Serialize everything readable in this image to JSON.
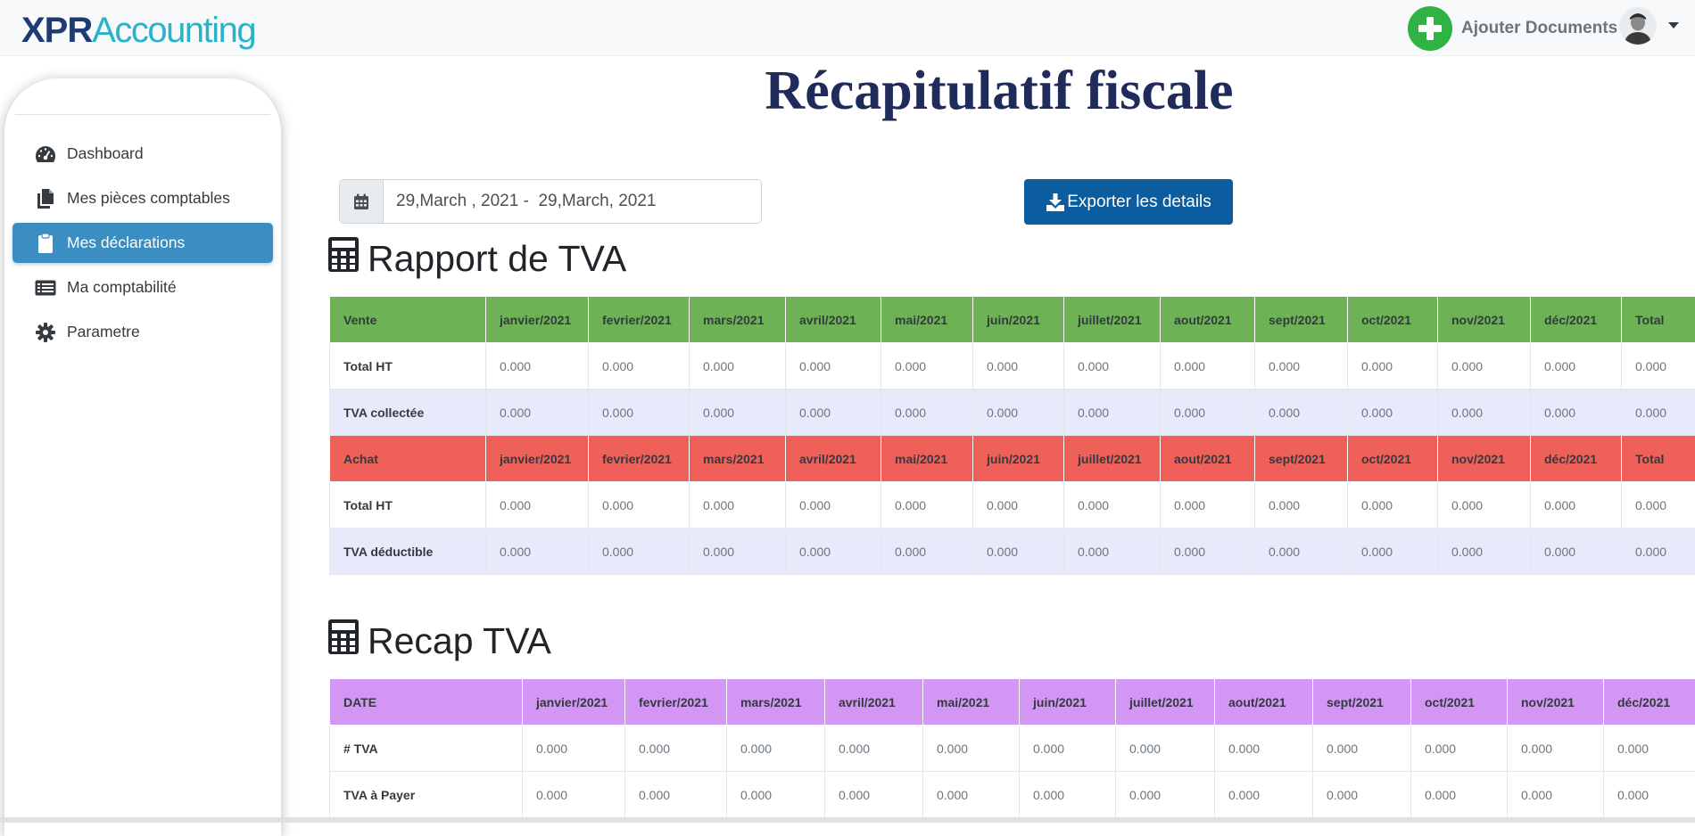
{
  "app": {
    "logo_strong": "XPR",
    "logo_light": "Accounting",
    "add_documents_label": "Ajouter Documents"
  },
  "sidebar": {
    "items": [
      {
        "label": "Dashboard",
        "icon": "tachometer-icon",
        "active": false
      },
      {
        "label": "Mes pièces comptables",
        "icon": "copy-icon",
        "active": false
      },
      {
        "label": "Mes déclarations",
        "icon": "clipboard-icon",
        "active": true
      },
      {
        "label": "Ma comptabilité",
        "icon": "list-icon",
        "active": false
      },
      {
        "label": "Parametre",
        "icon": "gear-icon",
        "active": false
      }
    ]
  },
  "main": {
    "title": "Récapitulatif fiscale",
    "date_range": "29,March , 2021 -  29,March, 2021",
    "export_label": "Exporter les details",
    "section1_title": "Rapport de TVA",
    "section2_title": "Recap TVA"
  },
  "rapport": {
    "vente_header": [
      "Vente",
      "janvier/2021",
      "fevrier/2021",
      "mars/2021",
      "avril/2021",
      "mai/2021",
      "juin/2021",
      "juillet/2021",
      "aout/2021",
      "sept/2021",
      "oct/2021",
      "nov/2021",
      "déc/2021",
      "Total"
    ],
    "vente_rows": [
      [
        "Total HT",
        "0.000",
        "0.000",
        "0.000",
        "0.000",
        "0.000",
        "0.000",
        "0.000",
        "0.000",
        "0.000",
        "0.000",
        "0.000",
        "0.000",
        "0.000"
      ],
      [
        "TVA collectée",
        "0.000",
        "0.000",
        "0.000",
        "0.000",
        "0.000",
        "0.000",
        "0.000",
        "0.000",
        "0.000",
        "0.000",
        "0.000",
        "0.000",
        "0.000"
      ]
    ],
    "achat_header": [
      "Achat",
      "janvier/2021",
      "fevrier/2021",
      "mars/2021",
      "avril/2021",
      "mai/2021",
      "juin/2021",
      "juillet/2021",
      "aout/2021",
      "sept/2021",
      "oct/2021",
      "nov/2021",
      "déc/2021",
      "Total"
    ],
    "achat_rows": [
      [
        "Total HT",
        "0.000",
        "0.000",
        "0.000",
        "0.000",
        "0.000",
        "0.000",
        "0.000",
        "0.000",
        "0.000",
        "0.000",
        "0.000",
        "0.000",
        "0.000"
      ],
      [
        "TVA déductible",
        "0.000",
        "0.000",
        "0.000",
        "0.000",
        "0.000",
        "0.000",
        "0.000",
        "0.000",
        "0.000",
        "0.000",
        "0.000",
        "0.000",
        "0.000"
      ]
    ]
  },
  "recap": {
    "header": [
      "DATE",
      "janvier/2021",
      "fevrier/2021",
      "mars/2021",
      "avril/2021",
      "mai/2021",
      "juin/2021",
      "juillet/2021",
      "aout/2021",
      "sept/2021",
      "oct/2021",
      "nov/2021",
      "déc/2021"
    ],
    "rows": [
      [
        "# TVA",
        "0.000",
        "0.000",
        "0.000",
        "0.000",
        "0.000",
        "0.000",
        "0.000",
        "0.000",
        "0.000",
        "0.000",
        "0.000",
        "0.000"
      ],
      [
        "TVA à Payer",
        "0.000",
        "0.000",
        "0.000",
        "0.000",
        "0.000",
        "0.000",
        "0.000",
        "0.000",
        "0.000",
        "0.000",
        "0.000",
        "0.000"
      ]
    ]
  },
  "colors": {
    "vente_header": "#6db355",
    "achat_header": "#ef6059",
    "recap_header": "#d396f5",
    "active_nav": "#3a8ec1",
    "export_button": "#0b5d9f",
    "title": "#1f2b5a"
  }
}
